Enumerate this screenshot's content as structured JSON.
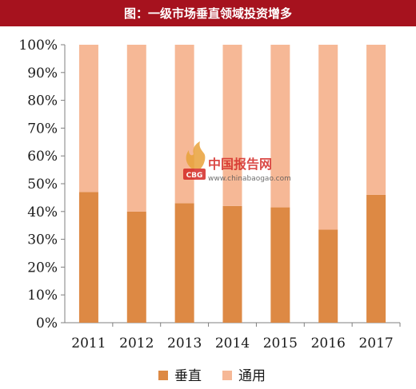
{
  "title": "图：一级市场垂直领域投资增多",
  "colors": {
    "title_bg": "#a6121e",
    "vertical": "#dd8944",
    "general": "#f6b896",
    "watermark_red": "#d42a26"
  },
  "watermark": {
    "logo_text": "CBG",
    "brand": "中国报告网",
    "url": "www.chinabaogao.com"
  },
  "chart_data": {
    "type": "bar",
    "stacked": true,
    "percent": true,
    "categories": [
      "2011",
      "2012",
      "2013",
      "2014",
      "2015",
      "2016",
      "2017"
    ],
    "series": [
      {
        "name": "垂直",
        "values": [
          47,
          40,
          43,
          42,
          41.5,
          33.5,
          46
        ]
      },
      {
        "name": "通用",
        "values": [
          53,
          60,
          57,
          58,
          58.5,
          66.5,
          54
        ]
      }
    ],
    "ylim": [
      0,
      100
    ],
    "yticks": [
      "0%",
      "10%",
      "20%",
      "30%",
      "40%",
      "50%",
      "60%",
      "70%",
      "80%",
      "90%",
      "100%"
    ],
    "grid": false,
    "legend": "bottom-center"
  }
}
